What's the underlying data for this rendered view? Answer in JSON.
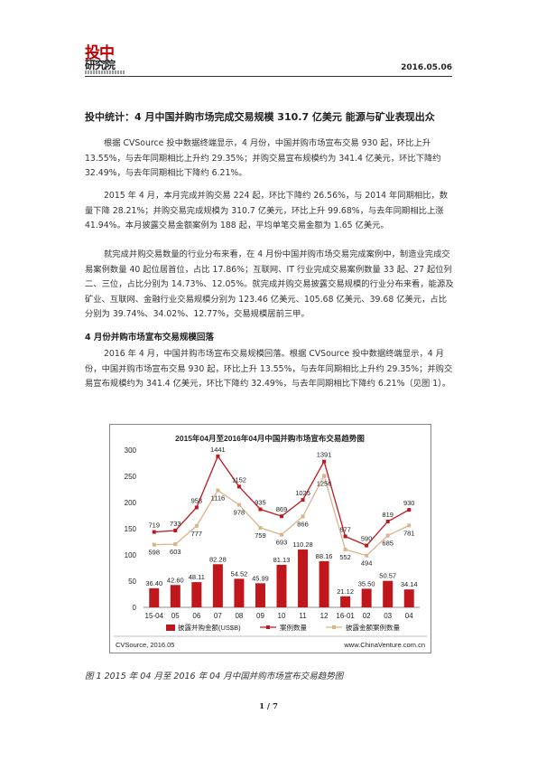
{
  "header": {
    "logo_main": "投中",
    "logo_sub": "研究院",
    "date": "2016.05.06"
  },
  "title": "投中统计：4 月中国并购市场完成交易规模 310.7 亿美元 能源与矿业表现出众",
  "paragraphs": [
    "根据 CVSource 投中数据终端显示，4 月份，中国并购市场宣布交易 930 起，环比上升 13.55%，与去年同期相比上升约 29.35%；并购交易宣布规模约为 341.4 亿美元，环比下降约 32.49%，与去年同期相比下降约 6.21%。",
    "2015 年 4 月，本月完成并购交易 224 起，环比下降约 26.56%，与 2014 年同期相比，数量下降 28.21%；并购交易完成规模为 310.7 亿美元，环比上升 99.68%，与去年同期相比上涨 41.94%。本月披露交易金额案例为 188 起，平均单笔交易金额为 1.65 亿美元。",
    "就完成并购交易数量的行业分布来看，在 4 月份中国并购市场交易完成案例中，制造业完成交易案例数量 40 起位居首位，占比 17.86%；互联网、IT 行业完成交易案例数量 33 起、27 起位列二、三位，占比分别为 14.73%、12.05%。就完成并购交易披露交易规模的行业分布来看，能源及矿业、互联网、金融行业交易规模分别为 123.46 亿美元、105.68 亿美元、39.68 亿美元，占比分别为 39.74%、34.02%、12.77%，交易规模居前三甲。"
  ],
  "section_heading": "4 月份并购市场宣布交易规模回落",
  "section_paragraph": "2016 年 4 月，中国并购市场宣布交易规模回落。根据 CVSource 投中数据终端显示，4 月份，中国并购市场宣布交易 930 起，环比上升 13.55%，与去年同期相比上升约 29.35%；并购交易宣布规模约为 341.4 亿美元，环比下降约 32.49%，与去年同期相比下降约 6.21%（见图 1）。",
  "chart_data": {
    "type": "bar+line",
    "title": "2015年04月至2016年04月中国并购市场宣布交易趋势图",
    "categories": [
      "15-04",
      "05",
      "06",
      "07",
      "08",
      "09",
      "10",
      "11",
      "12",
      "16-01",
      "02",
      "03",
      "04"
    ],
    "series": [
      {
        "name": "披露并购金额(US$B)",
        "kind": "bar",
        "color": "#c0171d",
        "values": [
          36.4,
          42.6,
          48.11,
          82.28,
          54.52,
          45.99,
          81.13,
          110.28,
          88.16,
          21.12,
          35.5,
          50.57,
          34.14
        ]
      },
      {
        "name": "案例数量",
        "kind": "line",
        "color": "#c0171d",
        "values": [
          719,
          733,
          953,
          1441,
          1152,
          935,
          869,
          1025,
          1391,
          677,
          590,
          819,
          930
        ]
      },
      {
        "name": "披露金额案例数量",
        "kind": "line",
        "color": "#d8b48a",
        "values": [
          598,
          603,
          777,
          1116,
          978,
          759,
          693,
          866,
          1256,
          552,
          494,
          685,
          781
        ]
      }
    ],
    "yticks": [
      0,
      50,
      100,
      150,
      200,
      250,
      300
    ],
    "ylim": [
      0,
      300
    ],
    "source_left": "CVSource, 2016.05",
    "source_right": "www.ChinaVenture.com.cn"
  },
  "caption": "图 1 2015 年 04 月至 2016 年 04 月中国并购市场宣布交易趋势图",
  "page_number": "1 / 7"
}
